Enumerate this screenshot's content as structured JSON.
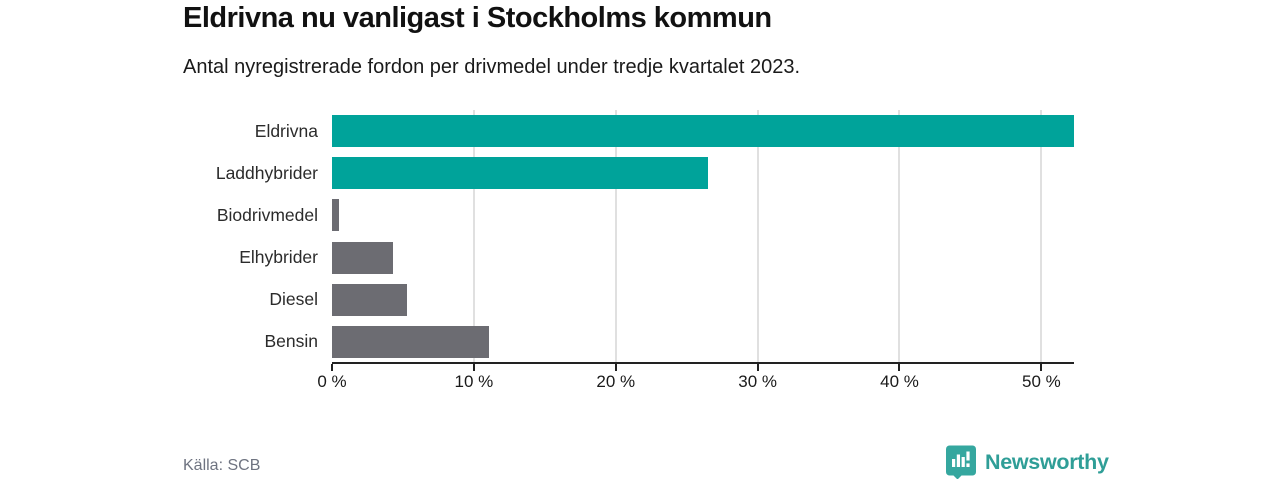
{
  "header": {
    "title": "Eldrivna nu vanligast i Stockholms kommun",
    "subtitle": "Antal nyregistrerade fordon per drivmedel under tredje kvartalet 2023."
  },
  "footer": {
    "source": "Källa: SCB",
    "brand_name": "Newsworthy",
    "brand_icon": "bar-chart-pin-icon"
  },
  "colors": {
    "highlight_bar": "#00a39a",
    "muted_bar": "#6c6c72",
    "gridline": "#e0e0e0",
    "axis": "#222222",
    "brand_teal": "#2f9e97",
    "brand_badge": "#35a79f",
    "source_text": "#6e7380"
  },
  "chart_data": {
    "type": "bar",
    "orientation": "horizontal",
    "title": "Eldrivna nu vanligast i Stockholms kommun",
    "subtitle": "Antal nyregistrerade fordon per drivmedel under tredje kvartalet 2023.",
    "categories": [
      "Eldrivna",
      "Laddhybrider",
      "Biodrivmedel",
      "Elhybrider",
      "Diesel",
      "Bensin"
    ],
    "values": [
      52.3,
      26.5,
      0.5,
      4.3,
      5.3,
      11.1
    ],
    "unit": "%",
    "bar_colors": [
      "#00a39a",
      "#00a39a",
      "#6c6c72",
      "#6c6c72",
      "#6c6c72",
      "#6c6c72"
    ],
    "x_ticks": [
      0,
      10,
      20,
      30,
      40,
      50
    ],
    "x_tick_labels": [
      "0 %",
      "10 %",
      "20 %",
      "30 %",
      "40 %",
      "50 %"
    ],
    "xlim": [
      0,
      52.3
    ],
    "grid": true,
    "legend": "none",
    "source": "Källa: SCB"
  }
}
